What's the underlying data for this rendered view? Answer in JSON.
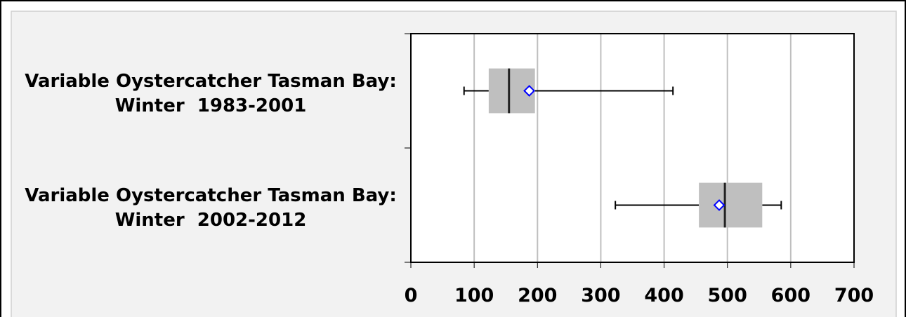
{
  "chart_data": {
    "type": "boxplot",
    "orientation": "horizontal",
    "categories": [
      "Variable Oystercatcher Tasman Bay: Winter  1983-2001",
      "Variable Oystercatcher Tasman Bay: Winter  2002-2012"
    ],
    "min": [
      84,
      323
    ],
    "q1": [
      123,
      455
    ],
    "median": [
      155,
      496
    ],
    "q3": [
      196,
      555
    ],
    "max": [
      414,
      585
    ],
    "mean": [
      187,
      487
    ],
    "box_color": "#bfbfbf",
    "mean_color": "#0000ff",
    "xlim": [
      0,
      700
    ],
    "xticks": [
      0,
      100,
      200,
      300,
      400,
      500,
      600,
      700
    ],
    "grid": true
  }
}
